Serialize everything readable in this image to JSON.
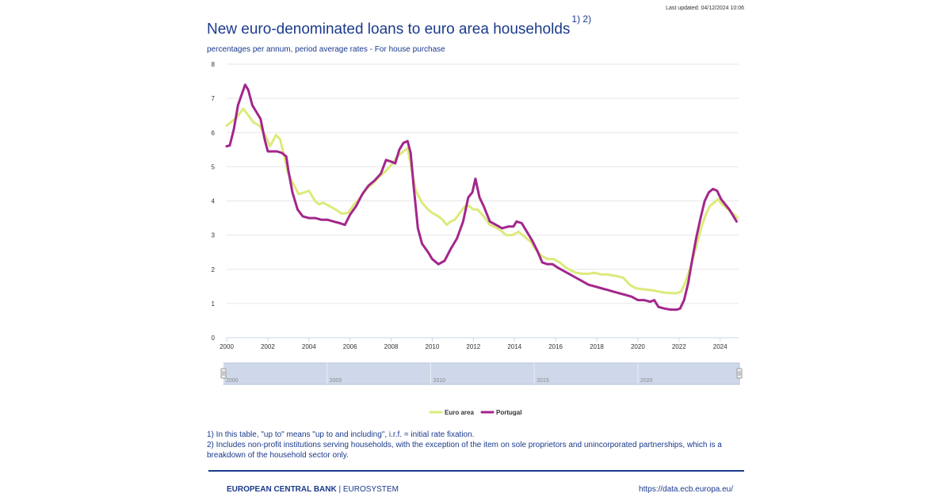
{
  "header": {
    "last_updated": "Last updated: 04/12/2024 10:06",
    "title": "New euro-denominated loans to euro area households",
    "title_footnotes": "1) 2)",
    "subtitle": "percentages per annum, period average rates - For house purchase"
  },
  "chart_data": {
    "type": "line",
    "title": "New euro-denominated loans to euro area households",
    "x_ticks": [
      "2000",
      "2002",
      "2004",
      "2006",
      "2008",
      "2010",
      "2012",
      "2014",
      "2016",
      "2018",
      "2020",
      "2022",
      "2024"
    ],
    "y_ticks": [
      "0",
      "1",
      "2",
      "3",
      "4",
      "5",
      "6",
      "7",
      "8"
    ],
    "xlim": [
      2000,
      2024.9
    ],
    "ylim": [
      0,
      8
    ],
    "grid": true,
    "legend_position": "bottom-center",
    "series": [
      {
        "name": "Euro area",
        "color": "#dcea7a",
        "points": [
          [
            2000.0,
            6.2
          ],
          [
            2000.2,
            6.3
          ],
          [
            2000.5,
            6.45
          ],
          [
            2000.8,
            6.7
          ],
          [
            2001.0,
            6.55
          ],
          [
            2001.3,
            6.3
          ],
          [
            2001.6,
            6.2
          ],
          [
            2001.9,
            5.9
          ],
          [
            2002.1,
            5.6
          ],
          [
            2002.2,
            5.7
          ],
          [
            2002.4,
            5.93
          ],
          [
            2002.6,
            5.8
          ],
          [
            2002.8,
            5.3
          ],
          [
            2003.0,
            4.8
          ],
          [
            2003.2,
            4.55
          ],
          [
            2003.5,
            4.2
          ],
          [
            2003.8,
            4.25
          ],
          [
            2004.0,
            4.3
          ],
          [
            2004.3,
            4.0
          ],
          [
            2004.5,
            3.9
          ],
          [
            2004.7,
            3.95
          ],
          [
            2005.0,
            3.85
          ],
          [
            2005.3,
            3.75
          ],
          [
            2005.6,
            3.63
          ],
          [
            2005.9,
            3.65
          ],
          [
            2006.2,
            3.9
          ],
          [
            2006.5,
            4.1
          ],
          [
            2006.8,
            4.35
          ],
          [
            2007.1,
            4.5
          ],
          [
            2007.4,
            4.7
          ],
          [
            2007.7,
            4.85
          ],
          [
            2008.0,
            5.05
          ],
          [
            2008.3,
            5.3
          ],
          [
            2008.6,
            5.45
          ],
          [
            2008.8,
            5.55
          ],
          [
            2009.0,
            4.9
          ],
          [
            2009.2,
            4.3
          ],
          [
            2009.5,
            3.95
          ],
          [
            2009.8,
            3.75
          ],
          [
            2010.0,
            3.65
          ],
          [
            2010.3,
            3.55
          ],
          [
            2010.5,
            3.45
          ],
          [
            2010.7,
            3.3
          ],
          [
            2010.9,
            3.4
          ],
          [
            2011.1,
            3.45
          ],
          [
            2011.4,
            3.7
          ],
          [
            2011.6,
            3.85
          ],
          [
            2011.8,
            3.85
          ],
          [
            2012.0,
            3.75
          ],
          [
            2012.2,
            3.75
          ],
          [
            2012.5,
            3.55
          ],
          [
            2012.8,
            3.3
          ],
          [
            2013.0,
            3.25
          ],
          [
            2013.3,
            3.15
          ],
          [
            2013.6,
            3.0
          ],
          [
            2013.9,
            3.0
          ],
          [
            2014.2,
            3.1
          ],
          [
            2014.5,
            2.95
          ],
          [
            2014.8,
            2.8
          ],
          [
            2015.0,
            2.6
          ],
          [
            2015.3,
            2.4
          ],
          [
            2015.6,
            2.3
          ],
          [
            2015.9,
            2.3
          ],
          [
            2016.2,
            2.2
          ],
          [
            2016.5,
            2.05
          ],
          [
            2016.8,
            1.95
          ],
          [
            2017.0,
            1.9
          ],
          [
            2017.3,
            1.87
          ],
          [
            2017.6,
            1.87
          ],
          [
            2017.9,
            1.9
          ],
          [
            2018.2,
            1.85
          ],
          [
            2018.5,
            1.85
          ],
          [
            2018.8,
            1.82
          ],
          [
            2019.0,
            1.8
          ],
          [
            2019.3,
            1.75
          ],
          [
            2019.6,
            1.55
          ],
          [
            2019.9,
            1.45
          ],
          [
            2020.2,
            1.42
          ],
          [
            2020.5,
            1.4
          ],
          [
            2020.8,
            1.38
          ],
          [
            2021.0,
            1.35
          ],
          [
            2021.3,
            1.32
          ],
          [
            2021.6,
            1.3
          ],
          [
            2021.9,
            1.3
          ],
          [
            2022.1,
            1.35
          ],
          [
            2022.3,
            1.6
          ],
          [
            2022.5,
            1.95
          ],
          [
            2022.7,
            2.35
          ],
          [
            2022.9,
            2.8
          ],
          [
            2023.1,
            3.25
          ],
          [
            2023.3,
            3.6
          ],
          [
            2023.5,
            3.85
          ],
          [
            2023.7,
            3.95
          ],
          [
            2023.9,
            4.05
          ],
          [
            2024.1,
            3.9
          ],
          [
            2024.3,
            3.8
          ],
          [
            2024.5,
            3.7
          ],
          [
            2024.7,
            3.6
          ],
          [
            2024.85,
            3.5
          ]
        ]
      },
      {
        "name": "Portugal",
        "color": "#a3268c",
        "points": [
          [
            2000.0,
            5.6
          ],
          [
            2000.15,
            5.62
          ],
          [
            2000.35,
            6.1
          ],
          [
            2000.55,
            6.8
          ],
          [
            2000.75,
            7.15
          ],
          [
            2000.9,
            7.4
          ],
          [
            2001.05,
            7.25
          ],
          [
            2001.25,
            6.8
          ],
          [
            2001.45,
            6.6
          ],
          [
            2001.65,
            6.4
          ],
          [
            2001.85,
            5.8
          ],
          [
            2002.0,
            5.45
          ],
          [
            2002.2,
            5.45
          ],
          [
            2002.45,
            5.45
          ],
          [
            2002.7,
            5.4
          ],
          [
            2002.9,
            5.3
          ],
          [
            2003.0,
            4.9
          ],
          [
            2003.2,
            4.25
          ],
          [
            2003.45,
            3.75
          ],
          [
            2003.7,
            3.55
          ],
          [
            2004.0,
            3.5
          ],
          [
            2004.3,
            3.5
          ],
          [
            2004.6,
            3.45
          ],
          [
            2004.9,
            3.45
          ],
          [
            2005.2,
            3.4
          ],
          [
            2005.5,
            3.35
          ],
          [
            2005.75,
            3.3
          ],
          [
            2006.0,
            3.6
          ],
          [
            2006.3,
            3.85
          ],
          [
            2006.6,
            4.2
          ],
          [
            2006.9,
            4.45
          ],
          [
            2007.2,
            4.6
          ],
          [
            2007.5,
            4.8
          ],
          [
            2007.75,
            5.2
          ],
          [
            2008.0,
            5.15
          ],
          [
            2008.2,
            5.1
          ],
          [
            2008.4,
            5.5
          ],
          [
            2008.6,
            5.7
          ],
          [
            2008.8,
            5.75
          ],
          [
            2008.95,
            5.4
          ],
          [
            2009.1,
            4.4
          ],
          [
            2009.3,
            3.2
          ],
          [
            2009.5,
            2.75
          ],
          [
            2009.8,
            2.5
          ],
          [
            2010.0,
            2.3
          ],
          [
            2010.3,
            2.15
          ],
          [
            2010.6,
            2.25
          ],
          [
            2010.9,
            2.6
          ],
          [
            2011.2,
            2.9
          ],
          [
            2011.5,
            3.4
          ],
          [
            2011.75,
            4.1
          ],
          [
            2011.95,
            4.25
          ],
          [
            2012.1,
            4.65
          ],
          [
            2012.3,
            4.1
          ],
          [
            2012.5,
            3.85
          ],
          [
            2012.8,
            3.4
          ],
          [
            2013.1,
            3.3
          ],
          [
            2013.4,
            3.2
          ],
          [
            2013.7,
            3.25
          ],
          [
            2013.95,
            3.25
          ],
          [
            2014.1,
            3.4
          ],
          [
            2014.35,
            3.35
          ],
          [
            2014.6,
            3.1
          ],
          [
            2014.85,
            2.85
          ],
          [
            2015.1,
            2.55
          ],
          [
            2015.35,
            2.2
          ],
          [
            2015.6,
            2.15
          ],
          [
            2015.85,
            2.15
          ],
          [
            2016.1,
            2.05
          ],
          [
            2016.4,
            1.95
          ],
          [
            2016.7,
            1.85
          ],
          [
            2017.0,
            1.75
          ],
          [
            2017.3,
            1.65
          ],
          [
            2017.6,
            1.55
          ],
          [
            2017.9,
            1.5
          ],
          [
            2018.2,
            1.45
          ],
          [
            2018.5,
            1.4
          ],
          [
            2018.8,
            1.35
          ],
          [
            2019.1,
            1.3
          ],
          [
            2019.4,
            1.25
          ],
          [
            2019.7,
            1.2
          ],
          [
            2020.0,
            1.1
          ],
          [
            2020.3,
            1.1
          ],
          [
            2020.6,
            1.05
          ],
          [
            2020.8,
            1.1
          ],
          [
            2021.0,
            0.9
          ],
          [
            2021.3,
            0.85
          ],
          [
            2021.6,
            0.82
          ],
          [
            2021.9,
            0.82
          ],
          [
            2022.05,
            0.85
          ],
          [
            2022.25,
            1.1
          ],
          [
            2022.45,
            1.6
          ],
          [
            2022.65,
            2.3
          ],
          [
            2022.85,
            2.95
          ],
          [
            2023.05,
            3.5
          ],
          [
            2023.25,
            4.0
          ],
          [
            2023.45,
            4.25
          ],
          [
            2023.65,
            4.35
          ],
          [
            2023.85,
            4.3
          ],
          [
            2024.05,
            4.05
          ],
          [
            2024.25,
            3.9
          ],
          [
            2024.45,
            3.75
          ],
          [
            2024.65,
            3.55
          ],
          [
            2024.8,
            3.4
          ]
        ]
      }
    ],
    "navigator": {
      "ticks": [
        "2000",
        "2005",
        "2010",
        "2015",
        "2020"
      ]
    }
  },
  "notes": [
    "1) In this table, \"up to\" means \"up to and including\", i.r.f. = initial rate fixation.",
    "2) Includes non-profit institutions serving households, with the exception of the item on sole proprietors and unincorporated partnerships, which is a breakdown of the household sector only."
  ],
  "footer": {
    "org": "EUROPEAN CENTRAL BANK",
    "separator": "|",
    "system": "EUROSYSTEM",
    "url": "https://data.ecb.europa.eu/"
  }
}
